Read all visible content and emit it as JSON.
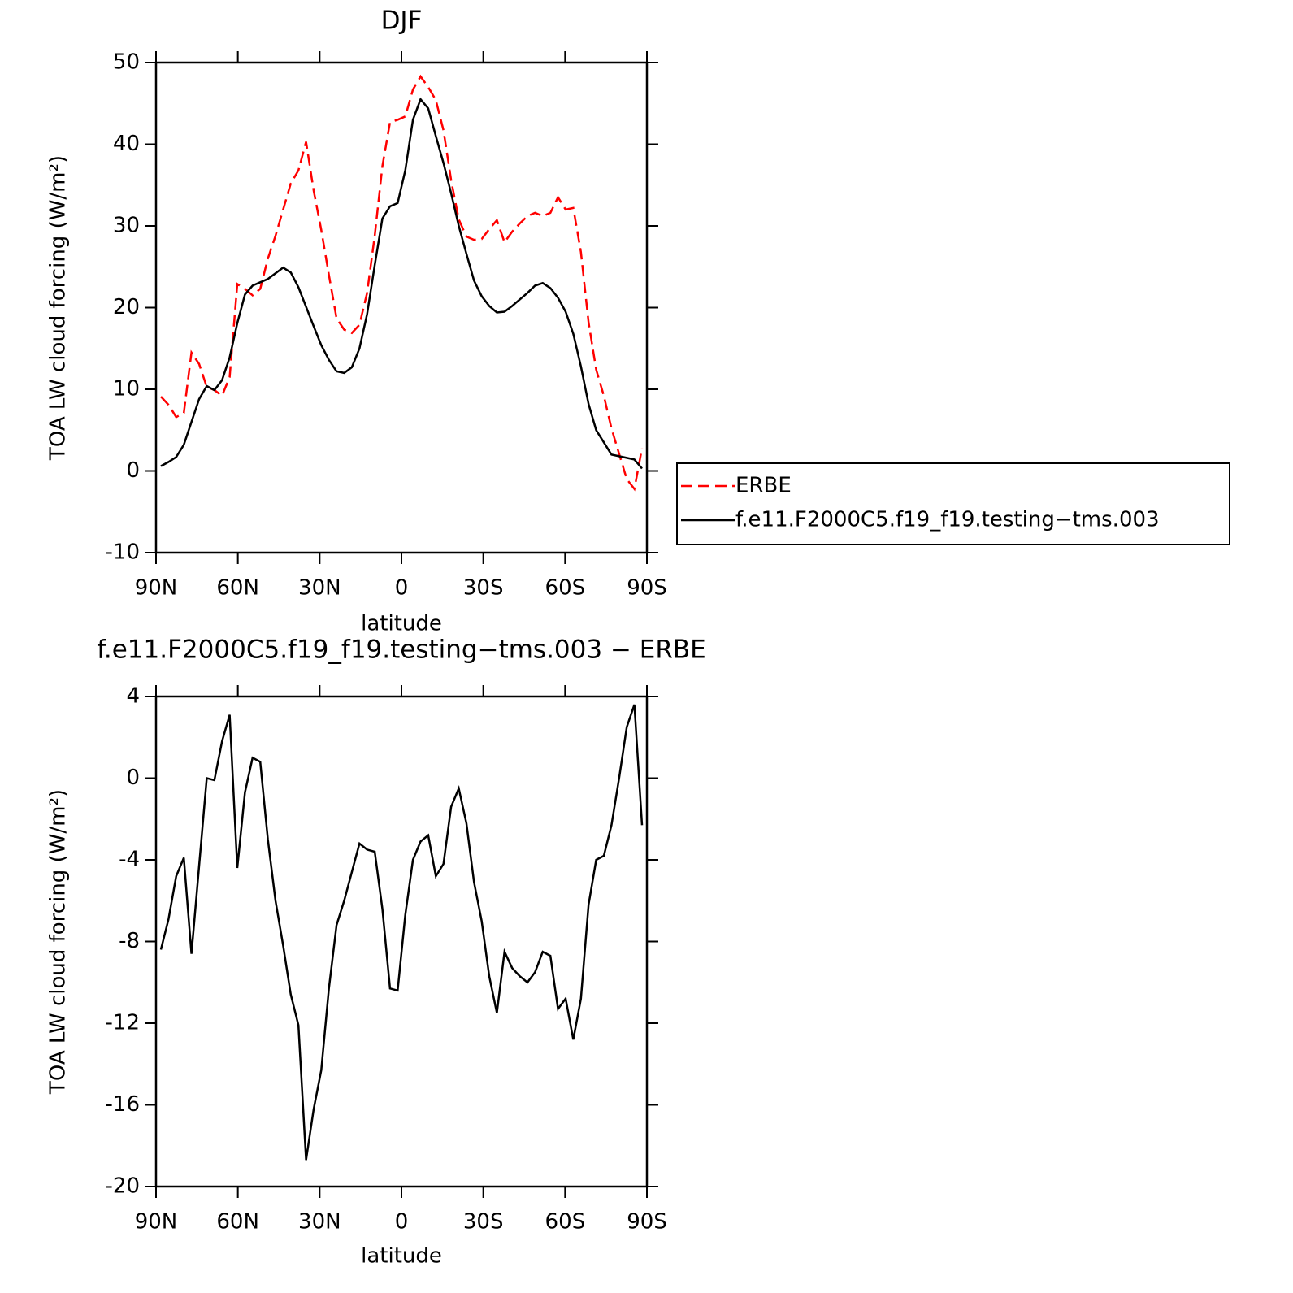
{
  "chart_data": [
    {
      "type": "line",
      "title": "DJF",
      "xlabel": "latitude",
      "ylabel": "TOA LW cloud forcing (W/m²)",
      "x": [
        88.2,
        85.4,
        82.6,
        79.8,
        77,
        74.2,
        71.4,
        68.6,
        65.8,
        63,
        60.2,
        57.4,
        54.6,
        51.8,
        49,
        46.2,
        43.4,
        40.6,
        37.8,
        35,
        32.2,
        29.4,
        26.6,
        23.8,
        21,
        18.2,
        15.4,
        12.6,
        9.8,
        7,
        4.2,
        1.4,
        -1.4,
        -4.2,
        -7,
        -9.8,
        -12.6,
        -15.4,
        -18.2,
        -21,
        -23.8,
        -26.6,
        -29.4,
        -32.2,
        -35,
        -37.8,
        -40.6,
        -43.4,
        -46.2,
        -49,
        -51.8,
        -54.6,
        -57.4,
        -60.2,
        -63,
        -65.8,
        -68.6,
        -71.4,
        -74.2,
        -77,
        -79.8,
        -82.6,
        -85.4,
        -88.2
      ],
      "series": [
        {
          "name": "ERBE",
          "color": "#ff0000",
          "line_style": "dashed",
          "values": [
            9.1,
            8.1,
            6.6,
            7.1,
            14.5,
            13.1,
            10.3,
            9.9,
            9.2,
            11.5,
            22.9,
            22.3,
            21.5,
            22.3,
            26,
            28.8,
            32,
            35.2,
            36.8,
            40.3,
            34.3,
            29.5,
            24,
            18.7,
            17.3,
            16.9,
            17.9,
            21.8,
            28.8,
            37.3,
            42.7,
            43,
            43.4,
            46.7,
            48.3,
            47,
            45.4,
            41.7,
            35.6,
            30.8,
            28.7,
            28.3,
            28.4,
            29.6,
            30.7,
            28,
            29.3,
            30.3,
            31.2,
            31.6,
            31.2,
            31.6,
            33.5,
            32,
            32.2,
            26.8,
            18.2,
            12.4,
            9.2,
            5.2,
            2.1,
            -1,
            -2.2,
            2.8
          ]
        },
        {
          "name": "f.e11.F2000C5.f19_f19.testing−tms.003",
          "color": "#000000",
          "line_style": "solid",
          "values": [
            0.6,
            1.1,
            1.7,
            3.2,
            6,
            8.8,
            10.4,
            9.9,
            11.1,
            13.9,
            18.1,
            21.6,
            22.7,
            23.1,
            23.5,
            24.2,
            24.9,
            24.3,
            22.5,
            20.1,
            17.7,
            15.4,
            13.6,
            12.2,
            12,
            12.7,
            15,
            19.2,
            25.2,
            30.9,
            32.4,
            32.8,
            36.8,
            43,
            45.5,
            44.4,
            41,
            37.7,
            34,
            30,
            26.6,
            23.3,
            21.4,
            20.2,
            19.4,
            19.5,
            20.2,
            21,
            21.8,
            22.7,
            23,
            22.4,
            21.2,
            19.5,
            16.8,
            12.8,
            8.2,
            5,
            3.5,
            2,
            1.8,
            1.6,
            1.4,
            0.3
          ]
        }
      ],
      "xlim": [
        90,
        -90
      ],
      "xticks": [
        {
          "value": 90,
          "label": "90N"
        },
        {
          "value": 60,
          "label": "60N"
        },
        {
          "value": 30,
          "label": "30N"
        },
        0,
        {
          "value": -30,
          "label": "30S"
        },
        {
          "value": -60,
          "label": "60S"
        },
        {
          "value": -90,
          "label": "90S"
        }
      ],
      "ylim": [
        -10,
        50
      ],
      "yticks": [
        50,
        40,
        30,
        20,
        10,
        0,
        -10
      ],
      "legend": "right"
    },
    {
      "type": "line",
      "title": "f.e11.F2000C5.f19_f19.testing−tms.003 − ERBE",
      "xlabel": "latitude",
      "ylabel": "TOA LW cloud forcing (W/m²)",
      "x": [
        88.2,
        85.4,
        82.6,
        79.8,
        77,
        74.2,
        71.4,
        68.6,
        65.8,
        63,
        60.2,
        57.4,
        54.6,
        51.8,
        49,
        46.2,
        43.4,
        40.6,
        37.8,
        35,
        32.2,
        29.4,
        26.6,
        23.8,
        21,
        18.2,
        15.4,
        12.6,
        9.8,
        7,
        4.2,
        1.4,
        -1.4,
        -4.2,
        -7,
        -9.8,
        -12.6,
        -15.4,
        -18.2,
        -21,
        -23.8,
        -26.6,
        -29.4,
        -32.2,
        -35,
        -37.8,
        -40.6,
        -43.4,
        -46.2,
        -49,
        -51.8,
        -54.6,
        -57.4,
        -60.2,
        -63,
        -65.8,
        -68.6,
        -71.4,
        -74.2,
        -77,
        -79.8,
        -82.6,
        -85.4,
        -88.2
      ],
      "series": [
        {
          "color": "#000000",
          "line_style": "solid",
          "values": [
            -8.4,
            -6.9,
            -4.8,
            -3.9,
            -8.6,
            -4.3,
            0,
            -0.1,
            1.8,
            3.1,
            -4.4,
            -0.7,
            1,
            0.8,
            -3,
            -6,
            -8.2,
            -10.6,
            -12.1,
            -18.7,
            -16.2,
            -14.3,
            -10.3,
            -7.2,
            -6,
            -4.6,
            -3.2,
            -3.5,
            -3.6,
            -6.4,
            -10.3,
            -10.4,
            -6.7,
            -4,
            -3.1,
            -2.8,
            -4.8,
            -4.2,
            -1.4,
            -0.5,
            -2.2,
            -5.1,
            -7,
            -9.7,
            -11.5,
            -8.5,
            -9.3,
            -9.7,
            -10,
            -9.5,
            -8.5,
            -8.7,
            -11.3,
            -10.8,
            -12.8,
            -10.8,
            -6.2,
            -4,
            -3.8,
            -2.3,
            0,
            2.5,
            3.6,
            -2.3
          ]
        }
      ],
      "xlim": [
        90,
        -90
      ],
      "xticks": [
        {
          "value": 90,
          "label": "90N"
        },
        {
          "value": 60,
          "label": "60N"
        },
        {
          "value": 30,
          "label": "30N"
        },
        0,
        {
          "value": -30,
          "label": "30S"
        },
        {
          "value": -60,
          "label": "60S"
        },
        {
          "value": -90,
          "label": "90S"
        }
      ],
      "ylim": [
        -20,
        4
      ],
      "yticks": [
        4,
        0,
        -4,
        -8,
        -12,
        -16,
        -20
      ]
    }
  ]
}
